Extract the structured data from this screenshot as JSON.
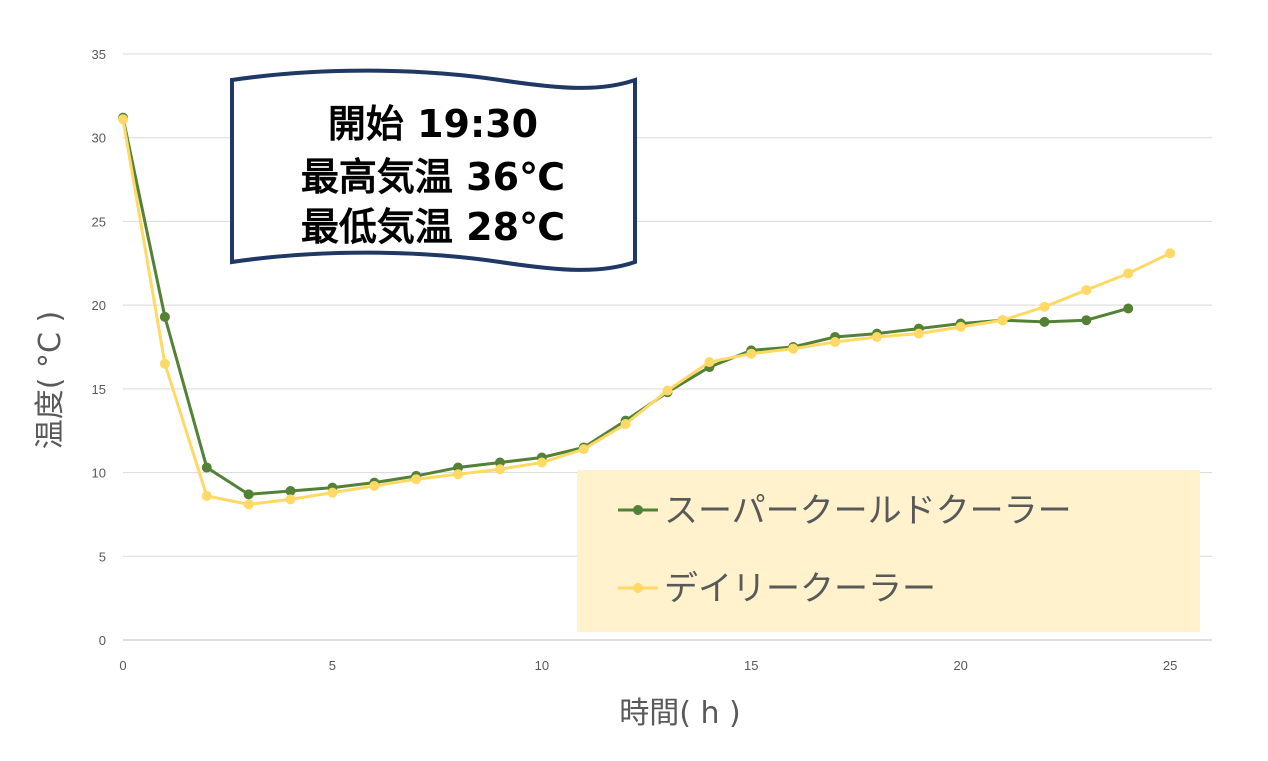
{
  "chart_data": {
    "type": "line",
    "xlabel": "時間( h )",
    "ylabel": "温度( °C )",
    "xlim": [
      0,
      26
    ],
    "ylim": [
      0,
      35
    ],
    "xticks": [
      0,
      5,
      10,
      15,
      20,
      25
    ],
    "yticks": [
      0,
      5,
      10,
      15,
      20,
      25,
      30,
      35
    ],
    "grid": "horizontal",
    "legend_position": "bottom-right",
    "series": [
      {
        "name": "スーパークールドクーラー",
        "color": "#538135",
        "x": [
          0,
          1,
          2,
          3,
          4,
          5,
          6,
          7,
          8,
          9,
          10,
          11,
          12,
          13,
          14,
          15,
          16,
          17,
          18,
          19,
          20,
          21,
          22,
          23,
          24
        ],
        "values": [
          31.2,
          19.3,
          10.3,
          8.7,
          8.9,
          9.1,
          9.4,
          9.8,
          10.3,
          10.6,
          10.9,
          11.5,
          13.1,
          14.8,
          16.3,
          17.3,
          17.5,
          18.1,
          18.3,
          18.6,
          18.9,
          19.1,
          19.0,
          19.1,
          19.8
        ]
      },
      {
        "name": "デイリークーラー",
        "color": "#FFD966",
        "x": [
          0,
          1,
          2,
          3,
          4,
          5,
          6,
          7,
          8,
          9,
          10,
          11,
          12,
          13,
          14,
          15,
          16,
          17,
          18,
          19,
          20,
          21,
          22,
          23,
          24,
          25
        ],
        "values": [
          31.1,
          16.5,
          8.6,
          8.1,
          8.4,
          8.8,
          9.2,
          9.6,
          9.9,
          10.2,
          10.6,
          11.4,
          12.9,
          14.9,
          16.6,
          17.1,
          17.4,
          17.8,
          18.1,
          18.3,
          18.7,
          19.1,
          19.9,
          20.9,
          21.9,
          23.1
        ]
      }
    ],
    "annotation": {
      "lines": [
        "開始 19:30",
        "最高気温 36℃",
        "最低気温 28℃"
      ]
    },
    "legend_background": "#FFF2CC"
  }
}
